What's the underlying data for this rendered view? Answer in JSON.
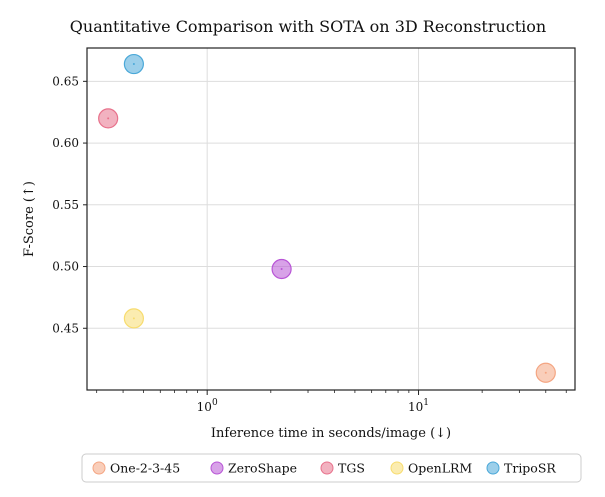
{
  "chart_data": {
    "type": "scatter",
    "title": "Quantitative Comparison with SOTA on 3D Reconstruction",
    "xlabel": "Inference time in seconds/image (↓)",
    "ylabel": "F-Score (↑)",
    "xscale": "log",
    "xlim": [
      0.27,
      55
    ],
    "ylim": [
      0.4,
      0.677
    ],
    "x_major_ticks": [
      {
        "value": 1,
        "base": "10",
        "exp": "0"
      },
      {
        "value": 10,
        "base": "10",
        "exp": "1"
      }
    ],
    "y_ticks": [
      {
        "value": 0.45,
        "label": "0.45"
      },
      {
        "value": 0.5,
        "label": "0.50"
      },
      {
        "value": 0.55,
        "label": "0.55"
      },
      {
        "value": 0.6,
        "label": "0.60"
      },
      {
        "value": 0.65,
        "label": "0.65"
      }
    ],
    "grid": true,
    "legend_position": "bottom",
    "series": [
      {
        "name": "One-2-3-45",
        "x": 40.0,
        "y": 0.414,
        "color": "#f4a582"
      },
      {
        "name": "ZeroShape",
        "x": 2.25,
        "y": 0.498,
        "color": "#b855d6"
      },
      {
        "name": "TGS",
        "x": 0.34,
        "y": 0.62,
        "color": "#e8728c"
      },
      {
        "name": "OpenLRM",
        "x": 0.45,
        "y": 0.458,
        "color": "#f7dc6f"
      },
      {
        "name": "TripoSR",
        "x": 0.45,
        "y": 0.664,
        "color": "#4aa8d8"
      }
    ]
  }
}
